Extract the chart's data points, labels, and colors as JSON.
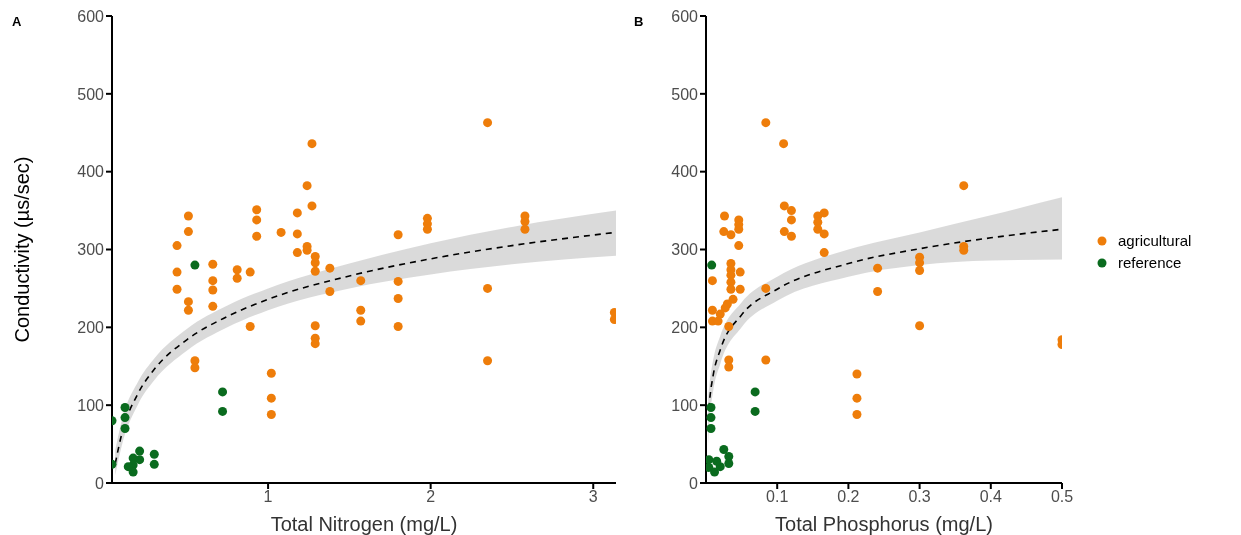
{
  "chart_data": [
    {
      "type": "scatter",
      "title": "A",
      "xlabel": "Total Nitrogen (mg/L)",
      "ylabel": "Conductivity (µs/sec)",
      "xlim": [
        0.04,
        3.14
      ],
      "xticks": [
        1,
        2,
        3
      ],
      "ylim": [
        0,
        600
      ],
      "yticks": [
        0,
        100,
        200,
        300,
        400,
        500,
        600
      ],
      "marker": "circle",
      "series": [
        {
          "color": "#ee7d0a",
          "x": [
            1.27,
            1.24,
            1.27,
            1.18,
            1.18,
            1.18,
            1.24,
            1.24,
            1.29,
            1.29,
            1.29,
            1.38,
            1.38,
            1.29,
            1.29,
            1.29,
            1.08,
            0.93,
            0.93,
            0.93,
            0.89,
            0.89,
            0.81,
            0.81,
            0.66,
            0.66,
            0.66,
            0.66,
            0.55,
            0.55,
            0.51,
            0.51,
            0.51,
            0.51,
            0.44,
            0.44,
            0.44,
            1.02,
            1.02,
            1.02,
            1.57,
            1.57,
            1.57,
            2.35,
            1.8,
            1.8,
            1.8,
            1.8,
            1.98,
            1.98,
            1.98,
            2.35,
            2.35,
            2.58,
            2.58,
            2.58,
            3.13,
            3.13
          ],
          "values": [
            436,
            382,
            356,
            347,
            320,
            296,
            304,
            299,
            291,
            283,
            272,
            276,
            246,
            202,
            186,
            179,
            322,
            351,
            338,
            317,
            271,
            201,
            274,
            263,
            281,
            260,
            248,
            227,
            157,
            148,
            343,
            323,
            233,
            222,
            305,
            271,
            249,
            141,
            109,
            88,
            260,
            222,
            208,
            463,
            319,
            259,
            237,
            201,
            340,
            333,
            326,
            250,
            157,
            343,
            336,
            326,
            219,
            210
          ]
        },
        {
          "color": "#0a6b1e",
          "x": [
            0.55,
            0.72,
            0.72,
            0.04,
            0.04,
            0.12,
            0.12,
            0.12,
            0.21,
            0.21,
            0.17,
            0.17,
            0.17,
            0.14,
            0.3,
            0.3
          ],
          "values": [
            280,
            117,
            92,
            80,
            24,
            97,
            84,
            70,
            41,
            30,
            32,
            23,
            14,
            21,
            37,
            24
          ]
        },
        {
          "type": "line",
          "color": "#000000",
          "line_style": "dashed",
          "marker": "none",
          "x": [
            0.06,
            0.1,
            0.2,
            0.3,
            0.5,
            0.75,
            1,
            1.5,
            2,
            2.5,
            3.14
          ],
          "values": [
            25,
            63,
            115,
            146,
            184,
            214,
            236,
            266,
            288,
            305,
            322
          ],
          "lower": [
            10,
            48,
            101,
            132,
            170,
            200,
            222,
            250,
            268,
            281,
            292
          ],
          "upper": [
            42,
            80,
            130,
            160,
            198,
            228,
            250,
            282,
            308,
            329,
            350
          ]
        }
      ]
    },
    {
      "type": "scatter",
      "title": "B",
      "xlabel": "Total Phosphorus (mg/L)",
      "xlim": [
        0,
        0.5
      ],
      "xticks": [
        0.1,
        0.2,
        0.3,
        0.4,
        0.5
      ],
      "ylim": [
        0,
        600
      ],
      "yticks": [
        0,
        100,
        200,
        300,
        400,
        500,
        600
      ],
      "marker": "circle",
      "legend": "right",
      "series": [
        {
          "name": "agricultural",
          "color": "#ee7d0a",
          "x": [
            0.084,
            0.109,
            0.11,
            0.12,
            0.12,
            0.11,
            0.12,
            0.157,
            0.166,
            0.157,
            0.157,
            0.166,
            0.166,
            0.084,
            0.032,
            0.032,
            0.032,
            0.084,
            0.212,
            0.212,
            0.212,
            0.026,
            0.046,
            0.046,
            0.046,
            0.025,
            0.035,
            0.046,
            0.009,
            0.035,
            0.035,
            0.035,
            0.035,
            0.035,
            0.048,
            0.048,
            0.038,
            0.03,
            0.027,
            0.02,
            0.009,
            0.009,
            0.017,
            0.362,
            0.362,
            0.362,
            0.3,
            0.3,
            0.3,
            0.3,
            0.241,
            0.241,
            0.5,
            0.5
          ],
          "values": [
            463,
            436,
            356,
            350,
            338,
            323,
            317,
            343,
            347,
            335,
            326,
            320,
            296,
            250,
            201,
            158,
            149,
            158,
            140,
            109,
            88,
            343,
            338,
            332,
            326,
            323,
            319,
            305,
            260,
            282,
            274,
            267,
            258,
            249,
            271,
            249,
            236,
            230,
            225,
            217,
            222,
            208,
            208,
            382,
            304,
            299,
            290,
            283,
            273,
            202,
            276,
            246,
            184,
            178
          ]
        },
        {
          "name": "reference",
          "color": "#0a6b1e",
          "x": [
            0.008,
            0.069,
            0.069,
            0.007,
            0.007,
            0.007,
            0.004,
            0.004,
            0.012,
            0.02,
            0.025,
            0.032,
            0.032,
            0.015
          ],
          "values": [
            280,
            117,
            92,
            97,
            84,
            70,
            30,
            20,
            14,
            21,
            43,
            34,
            25,
            28
          ]
        },
        {
          "type": "line",
          "color": "#000000",
          "line_style": "dashed",
          "marker": "none",
          "x": [
            0.003,
            0.005,
            0.01,
            0.02,
            0.05,
            0.1,
            0.2,
            0.3,
            0.4,
            0.5
          ],
          "values": [
            81,
            105,
            138,
            171,
            216,
            249,
            282,
            301,
            315,
            326
          ],
          "lower": [
            50,
            80,
            118,
            153,
            200,
            234,
            265,
            280,
            286,
            287
          ],
          "upper": [
            110,
            128,
            158,
            189,
            232,
            265,
            300,
            322,
            344,
            367
          ]
        }
      ]
    }
  ]
}
